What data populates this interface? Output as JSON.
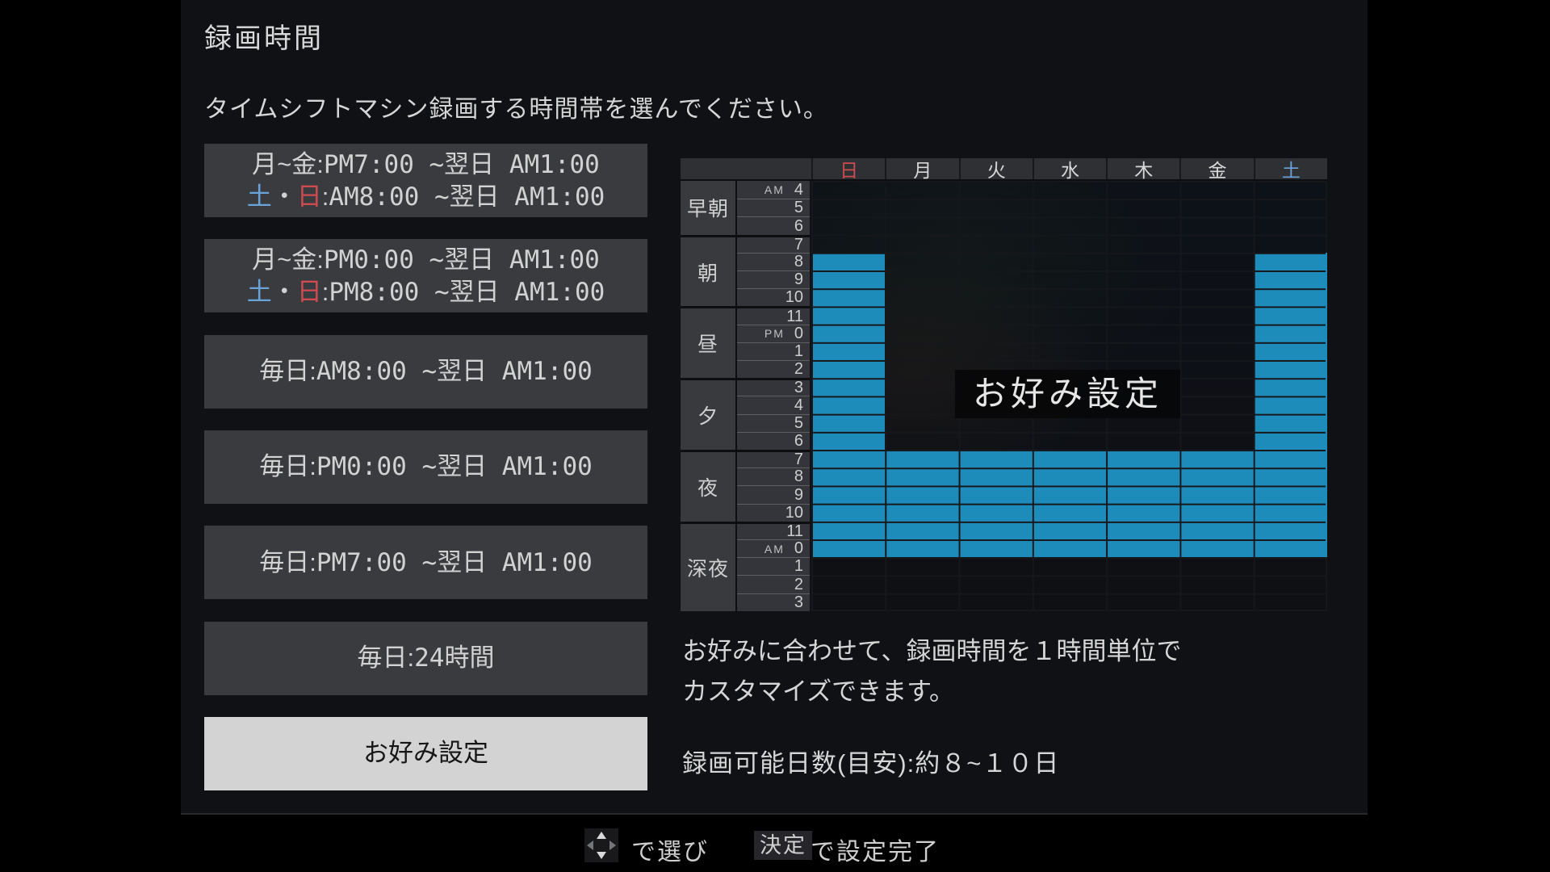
{
  "page": {
    "title": "録画時間",
    "subtitle": "タイムシフトマシン録画する時間帯を選んでください。"
  },
  "colors": {
    "selected_hours_blue": "#1e8cba",
    "sunday_red": "#cf4b52",
    "saturday_blue": "#6aa3d8",
    "selected_option_bg": "#d3d3d3"
  },
  "options": [
    {
      "selected": false,
      "lines": [
        [
          {
            "t": "月~金:"
          },
          {
            "t": "PM7:00 ~翌日 AM1:00",
            "f": "mono"
          }
        ],
        [
          {
            "t": "土",
            "c": "sat"
          },
          {
            "t": "・"
          },
          {
            "t": "日",
            "c": "sun"
          },
          {
            "t": ":"
          },
          {
            "t": "AM8:00 ~翌日 AM1:00",
            "f": "mono"
          }
        ]
      ]
    },
    {
      "selected": false,
      "lines": [
        [
          {
            "t": "月~金:"
          },
          {
            "t": "PM0:00 ~翌日 AM1:00",
            "f": "mono"
          }
        ],
        [
          {
            "t": "土",
            "c": "sat"
          },
          {
            "t": "・"
          },
          {
            "t": "日",
            "c": "sun"
          },
          {
            "t": ":"
          },
          {
            "t": "PM8:00 ~翌日 AM1:00",
            "f": "mono"
          }
        ]
      ]
    },
    {
      "selected": false,
      "lines": [
        [
          {
            "t": "毎日:"
          },
          {
            "t": "AM8:00 ~翌日 AM1:00",
            "f": "mono"
          }
        ]
      ]
    },
    {
      "selected": false,
      "lines": [
        [
          {
            "t": "毎日:"
          },
          {
            "t": "PM0:00 ~翌日 AM1:00",
            "f": "mono"
          }
        ]
      ]
    },
    {
      "selected": false,
      "lines": [
        [
          {
            "t": "毎日:"
          },
          {
            "t": "PM7:00 ~翌日 AM1:00",
            "f": "mono"
          }
        ]
      ]
    },
    {
      "selected": false,
      "lines": [
        [
          {
            "t": "毎日:"
          },
          {
            "t": "24",
            "f": "mono"
          },
          {
            "t": "時間"
          }
        ]
      ]
    },
    {
      "selected": true,
      "lines": [
        [
          {
            "t": "お好み設定"
          }
        ]
      ]
    }
  ],
  "grid": {
    "day_headers": [
      {
        "label": "日",
        "color": "#cf4b52"
      },
      {
        "label": "月"
      },
      {
        "label": "火"
      },
      {
        "label": "水"
      },
      {
        "label": "木"
      },
      {
        "label": "金"
      },
      {
        "label": "土",
        "color": "#6aa3d8"
      }
    ],
    "sections": [
      {
        "label": "早朝",
        "rows": 3
      },
      {
        "label": "朝",
        "rows": 4
      },
      {
        "label": "昼",
        "rows": 4
      },
      {
        "label": "夕",
        "rows": 4
      },
      {
        "label": "夜",
        "rows": 4
      },
      {
        "label": "深夜",
        "rows": 5
      }
    ],
    "hours": [
      {
        "p": "AM",
        "n": "4"
      },
      {
        "n": "5"
      },
      {
        "n": "6"
      },
      {
        "n": "7"
      },
      {
        "n": "8"
      },
      {
        "n": "9"
      },
      {
        "n": "10"
      },
      {
        "n": "11"
      },
      {
        "p": "PM",
        "n": "0"
      },
      {
        "n": "1"
      },
      {
        "n": "2"
      },
      {
        "n": "3"
      },
      {
        "n": "4"
      },
      {
        "n": "5"
      },
      {
        "n": "6"
      },
      {
        "n": "7"
      },
      {
        "n": "8"
      },
      {
        "n": "9"
      },
      {
        "n": "10"
      },
      {
        "n": "11"
      },
      {
        "p": "AM",
        "n": "0"
      },
      {
        "n": "1"
      },
      {
        "n": "2"
      },
      {
        "n": "3"
      }
    ],
    "selected_rows_by_day": [
      [
        [
          4,
          20
        ]
      ],
      [
        [
          15,
          20
        ]
      ],
      [
        [
          15,
          20
        ]
      ],
      [
        [
          15,
          20
        ]
      ],
      [
        [
          15,
          20
        ]
      ],
      [
        [
          15,
          20
        ]
      ],
      [
        [
          4,
          20
        ]
      ]
    ],
    "overlay_label": "お好み設定"
  },
  "description": {
    "line1": "お好みに合わせて、録画時間を１時間単位で",
    "line2": "カスタマイズできます。"
  },
  "recordable_days": "録画可能日数(目安):約８~１０日",
  "footer": {
    "dpad_icon": "dpad-navigation-icon",
    "select_label": "で選び",
    "decide_button": "決定",
    "complete_label": "で設定完了"
  }
}
